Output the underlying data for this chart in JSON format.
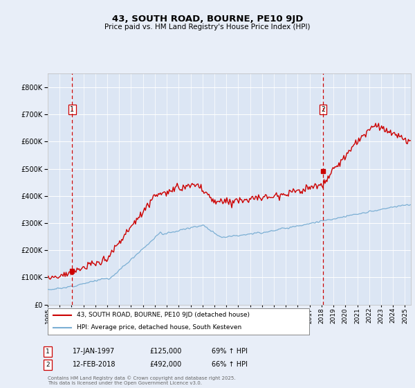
{
  "title": "43, SOUTH ROAD, BOURNE, PE10 9JD",
  "subtitle": "Price paid vs. HM Land Registry's House Price Index (HPI)",
  "bg_color": "#e8eef8",
  "plot_bg_color": "#dce6f4",
  "grid_color": "#ffffff",
  "red_color": "#cc0000",
  "blue_color": "#7bafd4",
  "dashed_color": "#cc0000",
  "ylim": [
    0,
    850000
  ],
  "yticks": [
    0,
    100000,
    200000,
    300000,
    400000,
    500000,
    600000,
    700000,
    800000
  ],
  "xlim_start": 1995.0,
  "xlim_end": 2025.5,
  "marker1_x": 1997.05,
  "marker1_y": 125000,
  "marker2_x": 2018.12,
  "marker2_y": 492000,
  "legend_red": "43, SOUTH ROAD, BOURNE, PE10 9JD (detached house)",
  "legend_blue": "HPI: Average price, detached house, South Kesteven",
  "note1_date": "17-JAN-1997",
  "note1_price": "£125,000",
  "note1_hpi": "69% ↑ HPI",
  "note2_date": "12-FEB-2018",
  "note2_price": "£492,000",
  "note2_hpi": "66% ↑ HPI",
  "footer": "Contains HM Land Registry data © Crown copyright and database right 2025.\nThis data is licensed under the Open Government Licence v3.0."
}
